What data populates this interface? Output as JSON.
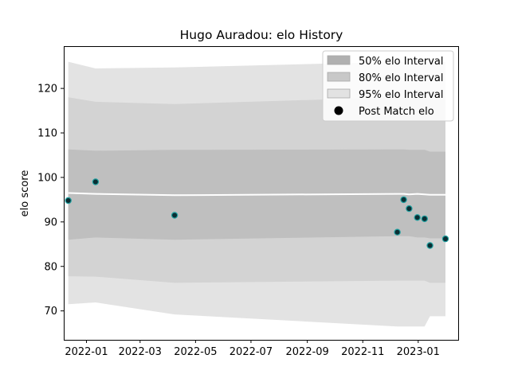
{
  "chart_data": {
    "type": "scatter",
    "title": "Hugo Auradou: elo History",
    "xlabel": "",
    "ylabel": "elo score",
    "xlim": [
      "2021-12-07",
      "2023-02-14"
    ],
    "ylim": [
      63.5,
      129.5
    ],
    "x_ticks": [
      "2022-01",
      "2022-03",
      "2022-05",
      "2022-07",
      "2022-09",
      "2022-11",
      "2023-01"
    ],
    "y_ticks": [
      70,
      80,
      90,
      100,
      110,
      120
    ],
    "grid": false,
    "legend_position": "top-right",
    "legend": [
      {
        "label": "50% elo Interval",
        "kind": "band",
        "color": "#b0b0b0"
      },
      {
        "label": "80% elo Interval",
        "kind": "band",
        "color": "#c8c8c8"
      },
      {
        "label": "95% elo Interval",
        "kind": "band",
        "color": "#e2e2e2"
      },
      {
        "label": "Post Match elo",
        "kind": "marker",
        "color": "#000000"
      }
    ],
    "colors": {
      "band_50": "#bfbfbf",
      "band_80": "#d3d3d3",
      "band_95": "#e3e3e3",
      "mean_line": "#ffffff",
      "point_fill": "#0a2e33",
      "point_edge": "#20a0a0"
    },
    "bands": {
      "x": [
        "2021-12-12",
        "2022-01-11",
        "2022-04-08",
        "2022-12-09",
        "2022-12-16",
        "2022-12-22",
        "2022-12-31",
        "2023-01-08",
        "2023-01-14",
        "2023-01-31"
      ],
      "mean": [
        96.5,
        96.3,
        96.0,
        96.3,
        96.3,
        96.2,
        96.3,
        96.2,
        96.1,
        96.1
      ],
      "p50_low": [
        86.0,
        86.5,
        86.0,
        86.8,
        86.8,
        86.8,
        86.5,
        86.5,
        86.3,
        86.3
      ],
      "p50_high": [
        106.3,
        106.0,
        106.2,
        106.3,
        106.3,
        106.2,
        106.2,
        106.2,
        105.8,
        105.8
      ],
      "p80_low": [
        77.8,
        77.7,
        76.3,
        76.8,
        76.8,
        76.8,
        76.8,
        76.8,
        76.3,
        76.3
      ],
      "p80_high": [
        118.0,
        117.0,
        116.5,
        118.0,
        118.0,
        118.0,
        118.0,
        118.0,
        117.5,
        117.5
      ],
      "p95_low": [
        71.5,
        71.9,
        69.2,
        66.5,
        66.5,
        66.5,
        66.5,
        66.5,
        68.8,
        68.8
      ],
      "p95_high": [
        126.0,
        124.5,
        124.7,
        126.0,
        126.0,
        126.0,
        126.0,
        126.0,
        126.0,
        126.0
      ]
    },
    "points": [
      {
        "x": "2021-12-12",
        "y": 94.8
      },
      {
        "x": "2022-01-11",
        "y": 99.0
      },
      {
        "x": "2022-04-08",
        "y": 91.5
      },
      {
        "x": "2022-12-09",
        "y": 87.7
      },
      {
        "x": "2022-12-16",
        "y": 95.0
      },
      {
        "x": "2022-12-22",
        "y": 93.0
      },
      {
        "x": "2022-12-31",
        "y": 91.0
      },
      {
        "x": "2023-01-08",
        "y": 90.7
      },
      {
        "x": "2023-01-14",
        "y": 84.7
      },
      {
        "x": "2023-01-31",
        "y": 86.2
      }
    ]
  }
}
